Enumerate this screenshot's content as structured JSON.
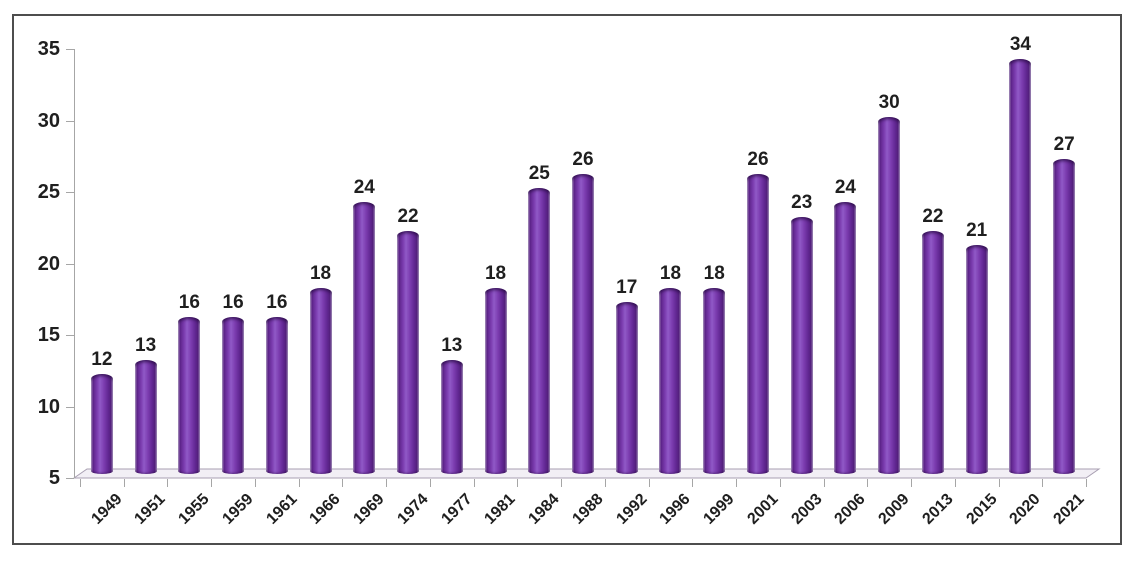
{
  "chart_data": {
    "type": "bar",
    "title": "",
    "subtitle": "",
    "xlabel": "",
    "ylabel": "",
    "categories": [
      "1949",
      "1951",
      "1955",
      "1959",
      "1961",
      "1966",
      "1969",
      "1974",
      "1977",
      "1981",
      "1984",
      "1988",
      "1992",
      "1996",
      "1999",
      "2001",
      "2003",
      "2006",
      "2009",
      "2013",
      "2015",
      "2020",
      "2021"
    ],
    "values": [
      12,
      13,
      16,
      16,
      16,
      18,
      24,
      22,
      13,
      18,
      25,
      26,
      17,
      18,
      18,
      26,
      23,
      24,
      30,
      22,
      21,
      34,
      27
    ],
    "ylim": [
      5,
      35
    ],
    "yticks": [
      5,
      10,
      15,
      20,
      25,
      30,
      35
    ],
    "grid": false,
    "legend": false,
    "bar_style": "3d-cylinder",
    "data_labels": true,
    "colors": {
      "bar_main": "#6f2da0",
      "bar_highlight": "#9059c7",
      "bar_shadow": "#4f1d7a",
      "axis_line": "#a6a6a6",
      "floor_fill": "#f2eff5",
      "floor_stroke": "#a89fb2",
      "label_text": "#1f1f1f",
      "frame_border": "#4d4d4d",
      "background": "#ffffff"
    }
  }
}
